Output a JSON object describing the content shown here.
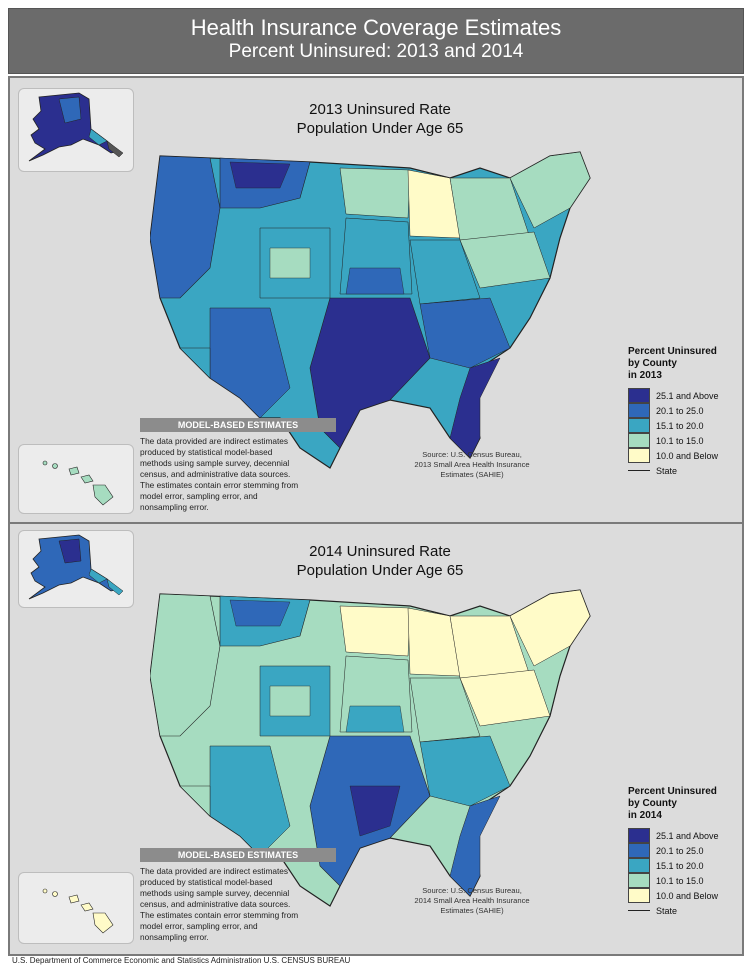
{
  "header": {
    "title": "Health Insurance Coverage Estimates",
    "subtitle": "Percent Uninsured: 2013 and 2014"
  },
  "maps": [
    {
      "title_line1": "2013 Uninsured Rate",
      "title_line2": "Population Under Age 65",
      "legend_title": [
        "Percent Uninsured",
        "by County",
        "in 2013"
      ],
      "source": [
        "Source: U.S. Census Bureau,",
        "2013 Small Area Health Insurance",
        "Estimates (SAHIE)"
      ]
    },
    {
      "title_line1": "2014 Uninsured Rate",
      "title_line2": "Population Under Age 65",
      "legend_title": [
        "Percent Uninsured",
        "by County",
        "in 2014"
      ],
      "source": [
        "Source: U.S. Census Bureau,",
        "2014 Small Area Health Insurance",
        "Estimates (SAHIE)"
      ]
    }
  ],
  "legend_items": [
    {
      "label": "25.1 and Above",
      "color": "#2b2f8f"
    },
    {
      "label": "20.1 to 25.0",
      "color": "#2f68b8"
    },
    {
      "label": "15.1 to 20.0",
      "color": "#3aa6c2"
    },
    {
      "label": "10.1 to 15.0",
      "color": "#a6dcc0"
    },
    {
      "label": "10.0 and Below",
      "color": "#fffbc8"
    }
  ],
  "legend_state_label": "State",
  "model_note": {
    "heading": "MODEL-BASED ESTIMATES",
    "text": [
      "The data provided are indirect estimates",
      "produced by statistical model-based",
      "methods using sample survey, decennial",
      "census, and administrative data sources.",
      "The estimates contain error stemming from",
      "model error, sampling error, and",
      "nonsampling error."
    ]
  },
  "footer": "U.S. Department of Commerce  Economic and Statistics Administration  U.S. CENSUS BUREAU"
}
